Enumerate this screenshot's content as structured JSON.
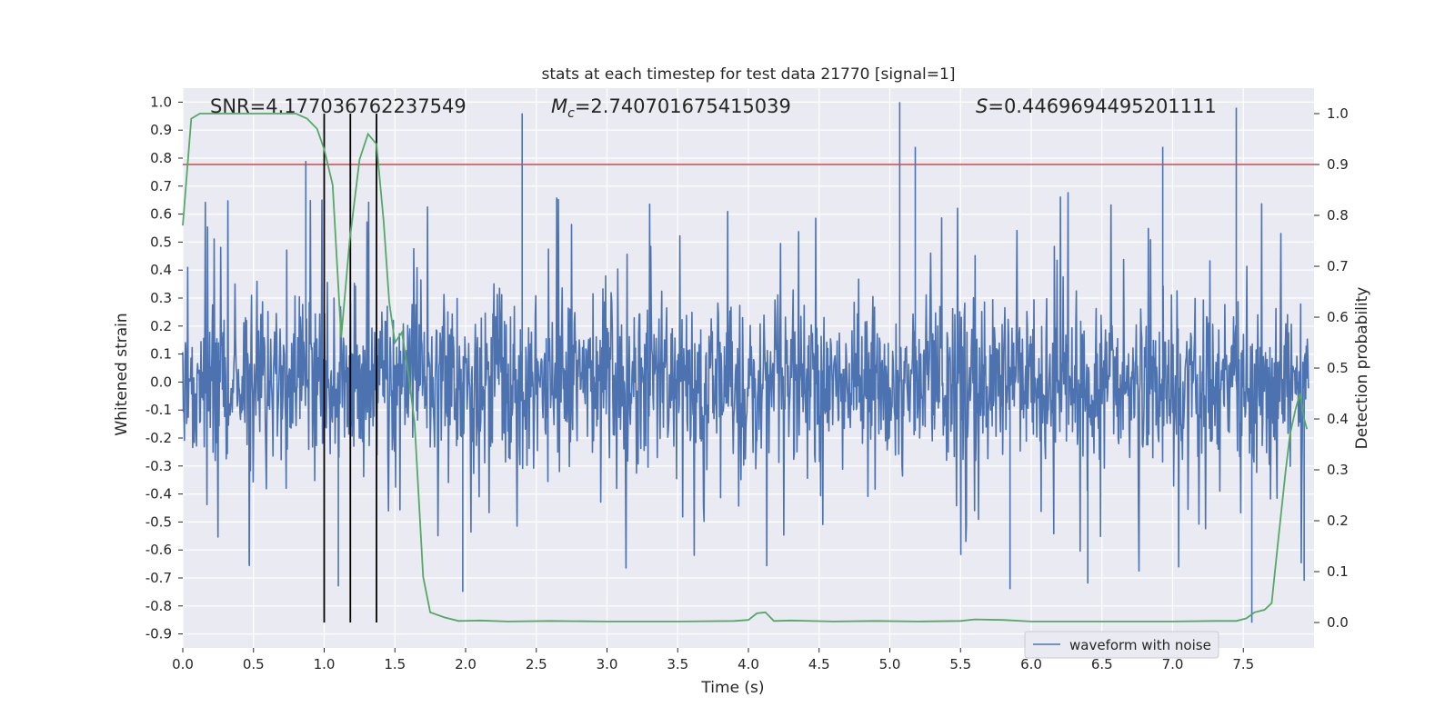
{
  "chart_data": {
    "type": "line",
    "title": "stats at each timestep for test data 21770 [signal=1]",
    "xlabel": "Time (s)",
    "ylabel_left": "Whitened strain",
    "ylabel_right": "Detection probability",
    "xlim": [
      0,
      8
    ],
    "ylim_left": [
      -0.95,
      1.05
    ],
    "ylim_right": [
      -0.05,
      1.05
    ],
    "x_ticks": [
      0.0,
      0.5,
      1.0,
      1.5,
      2.0,
      2.5,
      3.0,
      3.5,
      4.0,
      4.5,
      5.0,
      5.5,
      6.0,
      6.5,
      7.0,
      7.5
    ],
    "x_tick_labels": [
      "0.0",
      "0.5",
      "1.0",
      "1.5",
      "2.0",
      "2.5",
      "3.0",
      "3.5",
      "4.0",
      "4.5",
      "5.0",
      "5.5",
      "6.0",
      "6.5",
      "7.0",
      "7.5"
    ],
    "y_left_ticks": [
      1.0,
      0.9,
      0.8,
      0.7,
      0.6,
      0.5,
      0.4,
      0.3,
      0.2,
      0.1,
      0.0,
      -0.1,
      -0.2,
      -0.3,
      -0.4,
      -0.5,
      -0.6,
      -0.7,
      -0.8,
      -0.9
    ],
    "y_left_tick_labels": [
      "1.0",
      "0.9",
      "0.8",
      "0.7",
      "0.6",
      "0.5",
      "0.4",
      "0.3",
      "0.2",
      "0.1",
      "0.0",
      "-0.1",
      "-0.2",
      "-0.3",
      "-0.4",
      "-0.5",
      "-0.6",
      "-0.7",
      "-0.8",
      "-0.9"
    ],
    "y_right_ticks": [
      1.0,
      0.9,
      0.8,
      0.7,
      0.6,
      0.5,
      0.4,
      0.3,
      0.2,
      0.1,
      0.0
    ],
    "y_right_tick_labels": [
      "1.0",
      "0.9",
      "0.8",
      "0.7",
      "0.6",
      "0.5",
      "0.4",
      "0.3",
      "0.2",
      "0.1",
      "0.0"
    ],
    "annotations": {
      "snr": "SNR=4.177036762237549",
      "mc_symbol": "M",
      "mc_sub": "c",
      "mc_value": "=2.740701675415039",
      "s_symbol": "S",
      "s_value": "=0.4469694495201111"
    },
    "legend": {
      "label": "waveform with noise",
      "placement": "lower-right"
    },
    "grid": true,
    "colors": {
      "background": "#eaeaf2",
      "waveform": "#4c72b0",
      "probability": "#55a868",
      "threshold": "#c44e52",
      "markers": "#000000"
    },
    "threshold_probability": 0.9,
    "vertical_markers_x": [
      1.0,
      1.185,
      1.37
    ],
    "waveform": {
      "description_points": 2048,
      "seed": 21770,
      "envelope_typical": 0.27,
      "spikes": [
        {
          "x": 2.4,
          "y": 0.96
        },
        {
          "x": 5.07,
          "y": 1.0
        },
        {
          "x": 5.18,
          "y": 0.84
        },
        {
          "x": 6.93,
          "y": 0.84
        },
        {
          "x": 7.45,
          "y": 0.98
        },
        {
          "x": 0.87,
          "y": 0.79
        },
        {
          "x": 7.56,
          "y": -0.86
        },
        {
          "x": 1.98,
          "y": -0.75
        },
        {
          "x": 5.85,
          "y": -0.74
        },
        {
          "x": 6.4,
          "y": -0.72
        },
        {
          "x": 0.47,
          "y": -0.65
        },
        {
          "x": 1.1,
          "y": -0.73
        },
        {
          "x": 7.93,
          "y": -0.71
        }
      ]
    },
    "series": [
      {
        "name": "waveform with noise",
        "axis": "left"
      },
      {
        "axis": "right",
        "x": [
          0.0,
          0.06,
          0.12,
          0.2,
          0.3,
          0.5,
          0.7,
          0.8,
          0.88,
          0.95,
          1.0,
          1.06,
          1.12,
          1.18,
          1.25,
          1.31,
          1.37,
          1.42,
          1.46,
          1.5,
          1.55,
          1.6,
          1.64,
          1.7,
          1.75,
          1.85,
          1.95,
          2.1,
          2.3,
          2.6,
          3.0,
          3.5,
          3.9,
          4.0,
          4.06,
          4.12,
          4.18,
          4.3,
          4.6,
          4.9,
          5.2,
          5.5,
          5.6,
          5.8,
          6.0,
          6.5,
          7.0,
          7.3,
          7.45,
          7.52,
          7.58,
          7.65,
          7.7,
          7.75,
          7.8,
          7.83,
          7.87,
          7.9,
          7.93,
          7.95
        ],
        "values": [
          0.78,
          0.99,
          1.0,
          1.0,
          1.0,
          1.0,
          1.0,
          1.0,
          0.99,
          0.97,
          0.93,
          0.86,
          0.56,
          0.75,
          0.91,
          0.96,
          0.94,
          0.79,
          0.63,
          0.55,
          0.57,
          0.48,
          0.39,
          0.09,
          0.02,
          0.01,
          0.003,
          0.004,
          0.002,
          0.003,
          0.002,
          0.002,
          0.003,
          0.005,
          0.018,
          0.02,
          0.003,
          0.004,
          0.002,
          0.003,
          0.002,
          0.003,
          0.006,
          0.005,
          0.002,
          0.002,
          0.002,
          0.003,
          0.003,
          0.008,
          0.02,
          0.025,
          0.038,
          0.17,
          0.3,
          0.37,
          0.42,
          0.45,
          0.4,
          0.38
        ]
      }
    ]
  }
}
